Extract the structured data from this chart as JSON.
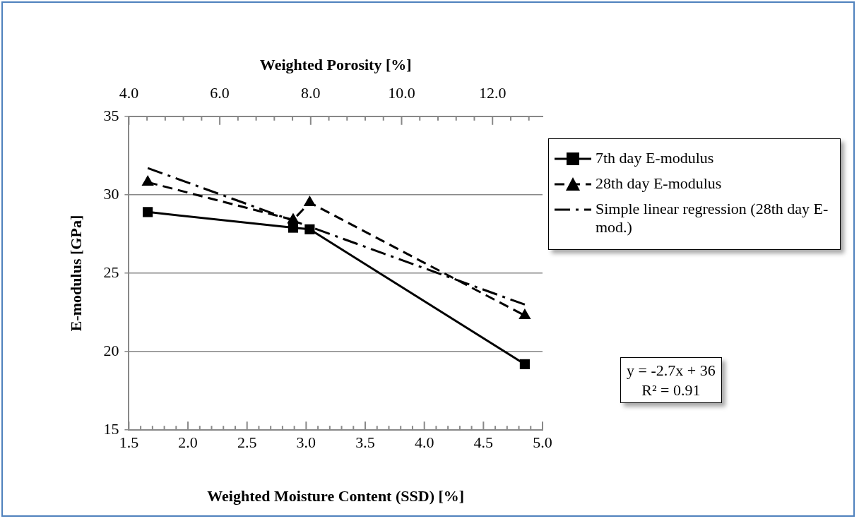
{
  "chart_data": {
    "type": "line",
    "x2label": "Weighted Porosity [%]",
    "xlabel": "Weighted Moisture Content (SSD) [%]",
    "ylabel": "E-modulus [GPa]",
    "x": [
      1.66,
      2.89,
      3.03,
      4.85
    ],
    "series": [
      {
        "name": "7th day E-modulus",
        "color": "#000000",
        "values": [
          28.9,
          27.9,
          27.8,
          19.2
        ],
        "marker": "square",
        "line_style": "solid"
      },
      {
        "name": "28th day E-modulus",
        "color": "#000000",
        "values": [
          30.8,
          28.4,
          29.5,
          22.3
        ],
        "marker": "triangle",
        "line_style": "dashed"
      },
      {
        "name": "Simple linear regression (28th day E-mod.)",
        "color": "#000000",
        "x": [
          1.66,
          4.85
        ],
        "values": [
          31.7,
          23.0
        ],
        "marker": "none",
        "line_style": "dashdot"
      }
    ],
    "xlim": [
      1.5,
      5.0
    ],
    "xticks": [
      {
        "value": 1.5,
        "label": "1.5"
      },
      {
        "value": 1.6,
        "label": null
      },
      {
        "value": 1.7,
        "label": null
      },
      {
        "value": 1.8,
        "label": null
      },
      {
        "value": 1.9,
        "label": null
      },
      {
        "value": 2,
        "label": "2.0"
      },
      {
        "value": 2.1,
        "label": null
      },
      {
        "value": 2.2,
        "label": null
      },
      {
        "value": 2.3,
        "label": null
      },
      {
        "value": 2.4,
        "label": null
      },
      {
        "value": 2.5,
        "label": "2.5"
      },
      {
        "value": 2.6,
        "label": null
      },
      {
        "value": 2.7,
        "label": null
      },
      {
        "value": 2.8,
        "label": null
      },
      {
        "value": 2.9,
        "label": null
      },
      {
        "value": 3,
        "label": "3.0"
      },
      {
        "value": 3.1,
        "label": null
      },
      {
        "value": 3.2,
        "label": null
      },
      {
        "value": 3.3,
        "label": null
      },
      {
        "value": 3.4,
        "label": null
      },
      {
        "value": 3.5,
        "label": "3.5"
      },
      {
        "value": 3.6,
        "label": null
      },
      {
        "value": 3.7,
        "label": null
      },
      {
        "value": 3.8,
        "label": null
      },
      {
        "value": 3.9,
        "label": null
      },
      {
        "value": 4,
        "label": "4.0"
      },
      {
        "value": 4.1,
        "label": null
      },
      {
        "value": 4.2,
        "label": null
      },
      {
        "value": 4.3,
        "label": null
      },
      {
        "value": 4.4,
        "label": null
      },
      {
        "value": 4.5,
        "label": "4.5"
      },
      {
        "value": 4.6,
        "label": null
      },
      {
        "value": 4.7,
        "label": null
      },
      {
        "value": 4.8,
        "label": null
      },
      {
        "value": 4.9,
        "label": null
      },
      {
        "value": 5,
        "label": "5.0"
      }
    ],
    "x2lim": [
      4.0,
      13.1
    ],
    "x2ticks": [
      {
        "value": 4,
        "label": "4.0"
      },
      {
        "value": 4.4,
        "label": null
      },
      {
        "value": 4.8,
        "label": null
      },
      {
        "value": 5.2,
        "label": null
      },
      {
        "value": 5.6,
        "label": null
      },
      {
        "value": 6,
        "label": "6.0"
      },
      {
        "value": 6.4,
        "label": null
      },
      {
        "value": 6.8,
        "label": null
      },
      {
        "value": 7.2,
        "label": null
      },
      {
        "value": 7.6,
        "label": null
      },
      {
        "value": 8,
        "label": "8.0"
      },
      {
        "value": 8.4,
        "label": null
      },
      {
        "value": 8.8,
        "label": null
      },
      {
        "value": 9.2,
        "label": null
      },
      {
        "value": 9.6,
        "label": null
      },
      {
        "value": 10,
        "label": "10.0"
      },
      {
        "value": 10.4,
        "label": null
      },
      {
        "value": 10.8,
        "label": null
      },
      {
        "value": 11.2,
        "label": null
      },
      {
        "value": 11.6,
        "label": null
      },
      {
        "value": 12,
        "label": "12.0"
      },
      {
        "value": 12.4,
        "label": null
      },
      {
        "value": 12.8,
        "label": null
      }
    ],
    "ylim": [
      15,
      35
    ],
    "yticks": [
      15,
      20,
      25,
      30,
      35
    ],
    "grid": "y",
    "legend": "right",
    "annotations": [
      "y = -2.7x + 36",
      "R² = 0.91"
    ]
  }
}
